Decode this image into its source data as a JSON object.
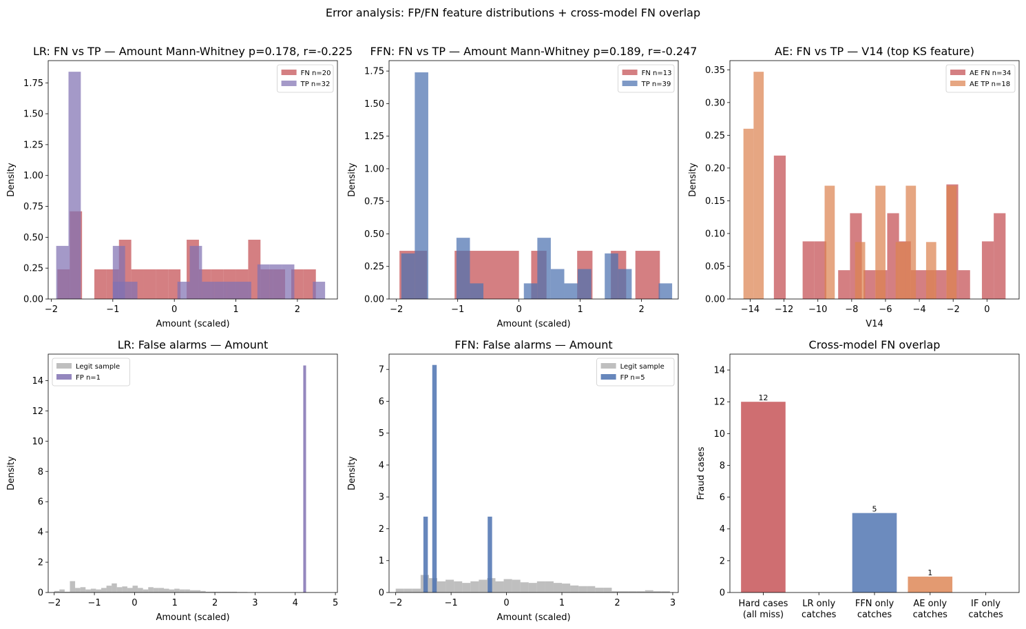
{
  "figure": {
    "suptitle": "Error analysis: FP/FN feature distributions + cross-model FN overlap"
  },
  "chart_data": [
    {
      "id": "lr-fn-tp",
      "type": "histogram",
      "title": "LR: FN vs TP — Amount  Mann-Whitney p=0.178, r=-0.225",
      "xlabel": "Amount (scaled)",
      "ylabel": "Density",
      "xlim": [
        -2.05,
        2.65
      ],
      "ylim": [
        0,
        1.93
      ],
      "xticks": [
        -2,
        -1,
        0,
        1,
        2
      ],
      "yticks": [
        0,
        0.25,
        0.5,
        0.75,
        1.0,
        1.25,
        1.5,
        1.75
      ],
      "ytick_decimals": 2,
      "legend_position": "upper right",
      "series": [
        {
          "name": "FN n=20",
          "color": "#c44e52",
          "alpha": 0.72,
          "bins": [
            [
              -1.9,
              -1.7,
              0.24
            ],
            [
              -1.7,
              -1.5,
              0.71
            ],
            [
              -1.3,
              -1.1,
              0.24
            ],
            [
              -1.1,
              -0.9,
              0.24
            ],
            [
              -0.9,
              -0.7,
              0.48
            ],
            [
              -0.7,
              -0.5,
              0.24
            ],
            [
              -0.5,
              -0.3,
              0.24
            ],
            [
              -0.3,
              -0.1,
              0.24
            ],
            [
              -0.1,
              0.1,
              0.24
            ],
            [
              0.2,
              0.4,
              0.48
            ],
            [
              0.4,
              0.6,
              0.24
            ],
            [
              0.6,
              0.8,
              0.24
            ],
            [
              0.8,
              1.0,
              0.24
            ],
            [
              1.0,
              1.2,
              0.24
            ],
            [
              1.2,
              1.4,
              0.48
            ],
            [
              1.4,
              1.6,
              0.24
            ],
            [
              1.6,
              1.8,
              0.24
            ],
            [
              1.9,
              2.1,
              0.24
            ],
            [
              2.1,
              2.3,
              0.24
            ]
          ]
        },
        {
          "name": "TP n=32",
          "color": "#8172b3",
          "alpha": 0.72,
          "bins": [
            [
              -1.92,
              -1.72,
              0.43
            ],
            [
              -1.72,
              -1.52,
              1.84
            ],
            [
              -1.0,
              -0.8,
              0.43
            ],
            [
              -1.0,
              -0.8,
              0.14
            ],
            [
              -0.8,
              -0.6,
              0.14
            ],
            [
              0.05,
              0.25,
              0.14
            ],
            [
              0.25,
              0.45,
              0.43
            ],
            [
              0.45,
              0.65,
              0.14
            ],
            [
              0.65,
              0.85,
              0.14
            ],
            [
              0.85,
              1.05,
              0.14
            ],
            [
              1.05,
              1.25,
              0.14
            ],
            [
              1.35,
              1.55,
              0.28
            ],
            [
              1.55,
              1.75,
              0.28
            ],
            [
              1.75,
              1.95,
              0.28
            ],
            [
              2.25,
              2.45,
              0.14
            ]
          ]
        }
      ]
    },
    {
      "id": "ffn-fn-tp",
      "type": "histogram",
      "title": "FFN: FN vs TP — Amount  Mann-Whitney p=0.189, r=-0.247",
      "xlabel": "Amount (scaled)",
      "ylabel": "Density",
      "xlim": [
        -2.12,
        2.6
      ],
      "ylim": [
        0,
        1.83
      ],
      "xticks": [
        -2,
        -1,
        0,
        1,
        2
      ],
      "yticks": [
        0,
        0.25,
        0.5,
        0.75,
        1.0,
        1.25,
        1.5,
        1.75
      ],
      "ytick_decimals": 2,
      "legend_position": "upper right",
      "series": [
        {
          "name": "FN n=13",
          "color": "#c44e52",
          "alpha": 0.72,
          "bins": [
            [
              -1.95,
              -1.5,
              0.37
            ],
            [
              -1.05,
              0.0,
              0.37
            ],
            [
              0.2,
              0.45,
              0.37
            ],
            [
              0.95,
              1.2,
              0.37
            ],
            [
              1.5,
              1.75,
              0.37
            ],
            [
              1.9,
              2.3,
              0.37
            ]
          ]
        },
        {
          "name": "TP n=39",
          "color": "#4c72b0",
          "alpha": 0.72,
          "bins": [
            [
              -1.92,
              -1.7,
              0.35
            ],
            [
              -1.7,
              -1.48,
              1.74
            ],
            [
              -1.02,
              -0.8,
              0.47
            ],
            [
              -0.8,
              -0.58,
              0.12
            ],
            [
              0.08,
              0.3,
              0.12
            ],
            [
              0.3,
              0.52,
              0.47
            ],
            [
              0.52,
              0.74,
              0.23
            ],
            [
              0.74,
              0.96,
              0.12
            ],
            [
              0.96,
              1.18,
              0.23
            ],
            [
              1.4,
              1.62,
              0.35
            ],
            [
              1.62,
              1.84,
              0.23
            ],
            [
              2.28,
              2.5,
              0.12
            ]
          ]
        }
      ]
    },
    {
      "id": "ae-fn-tp",
      "type": "histogram",
      "title": "AE: FN vs TP — V14 (top KS feature)",
      "xlabel": "V14",
      "ylabel": "Density",
      "xlim": [
        -15.2,
        1.9
      ],
      "ylim": [
        0,
        0.364
      ],
      "xticks": [
        -14,
        -12,
        -10,
        -8,
        -6,
        -4,
        -2,
        0
      ],
      "yticks": [
        0,
        0.05,
        0.1,
        0.15,
        0.2,
        0.25,
        0.3,
        0.35
      ],
      "ytick_decimals": 2,
      "legend_position": "upper right",
      "series": [
        {
          "name": "AE FN n=34",
          "color": "#c44e52",
          "alpha": 0.72,
          "bins": [
            [
              -12.6,
              -11.9,
              0.219
            ],
            [
              -10.9,
              -10.2,
              0.088
            ],
            [
              -10.2,
              -9.5,
              0.088
            ],
            [
              -8.8,
              -8.1,
              0.044
            ],
            [
              -8.1,
              -7.4,
              0.131
            ],
            [
              -7.3,
              -6.6,
              0.044
            ],
            [
              -6.6,
              -5.9,
              0.044
            ],
            [
              -5.9,
              -5.2,
              0.131
            ],
            [
              -5.2,
              -4.5,
              0.088
            ],
            [
              -4.5,
              -3.8,
              0.044
            ],
            [
              -3.8,
              -3.1,
              0.044
            ],
            [
              -3.1,
              -2.4,
              0.044
            ],
            [
              -2.4,
              -1.7,
              0.175
            ],
            [
              -1.7,
              -1.0,
              0.044
            ],
            [
              -0.3,
              0.4,
              0.088
            ],
            [
              0.4,
              1.1,
              0.131
            ]
          ]
        },
        {
          "name": "AE TP n=18",
          "color": "#dd8452",
          "alpha": 0.72,
          "bins": [
            [
              -14.4,
              -13.8,
              0.26
            ],
            [
              -13.8,
              -13.2,
              0.347
            ],
            [
              -9.6,
              -9.0,
              0.173
            ],
            [
              -7.8,
              -7.2,
              0.087
            ],
            [
              -6.6,
              -6.0,
              0.173
            ],
            [
              -5.4,
              -4.8,
              0.087
            ],
            [
              -4.8,
              -4.2,
              0.173
            ],
            [
              -3.6,
              -3.0,
              0.087
            ],
            [
              -2.4,
              -1.8,
              0.173
            ]
          ]
        }
      ]
    },
    {
      "id": "lr-false-alarms",
      "type": "histogram",
      "title": "LR: False alarms — Amount",
      "xlabel": "Amount (scaled)",
      "ylabel": "Density",
      "xlim": [
        -2.15,
        5.05
      ],
      "ylim": [
        0,
        15.75
      ],
      "xticks": [
        -2,
        -1,
        0,
        1,
        2,
        3,
        4,
        5
      ],
      "yticks": [
        0,
        2,
        4,
        6,
        8,
        10,
        12,
        14
      ],
      "ytick_decimals": 0,
      "legend_position": "upper left",
      "series": [
        {
          "name": "Legit sample",
          "color": "#a9a9a9",
          "alpha": 0.75,
          "bins": [
            [
              -2.0,
              -1.87,
              0.1
            ],
            [
              -1.87,
              -1.74,
              0.2
            ],
            [
              -1.74,
              -1.61,
              0.05
            ],
            [
              -1.61,
              -1.48,
              0.75
            ],
            [
              -1.48,
              -1.35,
              0.3
            ],
            [
              -1.35,
              -1.22,
              0.35
            ],
            [
              -1.22,
              -1.09,
              0.2
            ],
            [
              -1.09,
              -0.96,
              0.25
            ],
            [
              -0.96,
              -0.83,
              0.2
            ],
            [
              -0.83,
              -0.7,
              0.3
            ],
            [
              -0.7,
              -0.57,
              0.45
            ],
            [
              -0.57,
              -0.44,
              0.6
            ],
            [
              -0.44,
              -0.31,
              0.35
            ],
            [
              -0.31,
              -0.18,
              0.4
            ],
            [
              -0.18,
              -0.05,
              0.3
            ],
            [
              -0.05,
              0.08,
              0.45
            ],
            [
              0.08,
              0.21,
              0.3
            ],
            [
              0.21,
              0.34,
              0.2
            ],
            [
              0.34,
              0.47,
              0.35
            ],
            [
              0.47,
              0.6,
              0.3
            ],
            [
              0.6,
              0.73,
              0.3
            ],
            [
              0.73,
              0.86,
              0.25
            ],
            [
              0.86,
              0.99,
              0.2
            ],
            [
              0.99,
              1.12,
              0.25
            ],
            [
              1.12,
              1.25,
              0.2
            ],
            [
              1.25,
              1.38,
              0.2
            ],
            [
              1.38,
              1.51,
              0.15
            ],
            [
              1.51,
              1.64,
              0.15
            ],
            [
              1.64,
              1.77,
              0.1
            ],
            [
              1.77,
              1.9,
              0.05
            ],
            [
              1.9,
              2.03,
              0.05
            ],
            [
              2.03,
              2.16,
              0.05
            ],
            [
              2.16,
              2.29,
              0.05
            ],
            [
              2.29,
              2.42,
              0.05
            ],
            [
              2.42,
              2.55,
              0.05
            ],
            [
              2.55,
              2.68,
              0.03
            ],
            [
              2.68,
              2.81,
              0.03
            ]
          ]
        },
        {
          "name": "FP n=1",
          "color": "#8172b3",
          "alpha": 0.85,
          "bins": [
            [
              4.2,
              4.27,
              15.0
            ]
          ]
        }
      ]
    },
    {
      "id": "ffn-false-alarms",
      "type": "histogram",
      "title": "FFN: False alarms — Amount",
      "xlabel": "Amount (scaled)",
      "ylabel": "Density",
      "xlim": [
        -2.12,
        3.1
      ],
      "ylim": [
        0,
        7.48
      ],
      "xticks": [
        -2,
        -1,
        0,
        1,
        2,
        3
      ],
      "yticks": [
        0,
        1,
        2,
        3,
        4,
        5,
        6,
        7
      ],
      "ytick_decimals": 0,
      "legend_position": "upper right",
      "series": [
        {
          "name": "Legit sample",
          "color": "#a9a9a9",
          "alpha": 0.75,
          "bins": [
            [
              -2.0,
              -1.85,
              0.12
            ],
            [
              -1.85,
              -1.7,
              0.12
            ],
            [
              -1.7,
              -1.55,
              0.12
            ],
            [
              -1.55,
              -1.4,
              0.55
            ],
            [
              -1.4,
              -1.25,
              0.45
            ],
            [
              -1.25,
              -1.1,
              0.35
            ],
            [
              -1.1,
              -0.95,
              0.4
            ],
            [
              -0.95,
              -0.8,
              0.35
            ],
            [
              -0.8,
              -0.65,
              0.3
            ],
            [
              -0.65,
              -0.5,
              0.35
            ],
            [
              -0.5,
              -0.35,
              0.4
            ],
            [
              -0.35,
              -0.2,
              0.45
            ],
            [
              -0.2,
              -0.05,
              0.35
            ],
            [
              -0.05,
              0.1,
              0.42
            ],
            [
              0.1,
              0.25,
              0.4
            ],
            [
              0.25,
              0.4,
              0.32
            ],
            [
              0.4,
              0.55,
              0.3
            ],
            [
              0.55,
              0.7,
              0.35
            ],
            [
              0.7,
              0.85,
              0.35
            ],
            [
              0.85,
              1.0,
              0.3
            ],
            [
              1.0,
              1.15,
              0.28
            ],
            [
              1.15,
              1.3,
              0.22
            ],
            [
              1.3,
              1.45,
              0.2
            ],
            [
              1.45,
              1.6,
              0.2
            ],
            [
              1.6,
              1.75,
              0.15
            ],
            [
              1.75,
              1.9,
              0.15
            ],
            [
              1.9,
              2.05,
              0.04
            ],
            [
              2.05,
              2.2,
              0.04
            ],
            [
              2.2,
              2.35,
              0.04
            ],
            [
              2.35,
              2.5,
              0.04
            ],
            [
              2.5,
              2.65,
              0.07
            ],
            [
              2.65,
              2.8,
              0.04
            ],
            [
              2.8,
              2.95,
              0.04
            ]
          ]
        },
        {
          "name": "FP n=5",
          "color": "#4c72b0",
          "alpha": 0.85,
          "bins": [
            [
              -1.5,
              -1.42,
              2.38
            ],
            [
              -1.34,
              -1.26,
              7.14
            ],
            [
              -0.34,
              -0.26,
              2.38
            ]
          ]
        }
      ]
    },
    {
      "id": "cross-model-fn-overlap",
      "type": "bar",
      "title": "Cross-model FN overlap",
      "xlabel": "",
      "ylabel": "Fraud cases",
      "ylim": [
        0,
        15
      ],
      "yticks": [
        0,
        2,
        4,
        6,
        8,
        10,
        12,
        14
      ],
      "ytick_decimals": 0,
      "categories": [
        [
          "Hard cases",
          "(all miss)"
        ],
        [
          "LR only",
          "catches"
        ],
        [
          "FFN only",
          "catches"
        ],
        [
          "AE only",
          "catches"
        ],
        [
          "IF only",
          "catches"
        ]
      ],
      "values": [
        12,
        0,
        5,
        1,
        0
      ],
      "data_labels": [
        "12",
        "",
        "5",
        "1",
        ""
      ],
      "colors": [
        "#c44e52",
        "#8172b3",
        "#4c72b0",
        "#dd8452",
        "#937860"
      ]
    }
  ]
}
